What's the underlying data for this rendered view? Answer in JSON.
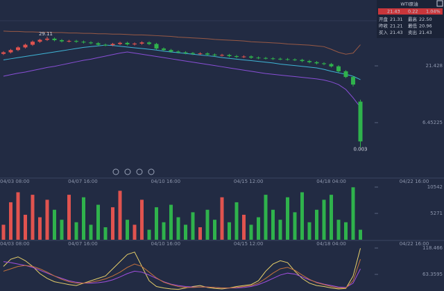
{
  "quote_panel": {
    "title": "WTI原油",
    "price": "21.43",
    "change": "0.22",
    "change_pct": "1.04%",
    "rows": [
      [
        "开盘",
        "21.31",
        "最高",
        "22.50"
      ],
      [
        "昨收",
        "21.21",
        "最低",
        "20.96"
      ],
      [
        "买入",
        "21.43",
        "卖出",
        "21.43"
      ]
    ]
  },
  "chart_data": [
    {
      "type": "candlestick",
      "up_color": "#e0534f",
      "down_color": "#2fb24c",
      "x_labels": [
        "04/03 08:00",
        "04/07 16:00",
        "04/10 16:00",
        "04/15 12:00",
        "04/18 04:00",
        "04/22 16:00"
      ],
      "ylim": [
        -7.8,
        38.8
      ],
      "yticks": [
        21.428,
        6.45225
      ],
      "ohlc": [
        [
          24.6,
          25.3,
          24.3,
          25.0
        ],
        [
          25.0,
          25.9,
          24.7,
          25.6
        ],
        [
          25.6,
          26.6,
          25.3,
          26.3
        ],
        [
          26.3,
          27.3,
          26.0,
          27.0
        ],
        [
          27.0,
          28.1,
          26.7,
          27.8
        ],
        [
          27.8,
          28.6,
          27.5,
          28.3
        ],
        [
          28.3,
          29.11,
          28.0,
          28.6
        ],
        [
          28.6,
          28.9,
          27.9,
          28.2
        ],
        [
          28.2,
          28.5,
          27.6,
          27.9
        ],
        [
          27.9,
          28.3,
          27.6,
          28.0
        ],
        [
          28.0,
          28.3,
          27.5,
          27.8
        ],
        [
          27.8,
          28.1,
          27.3,
          27.6
        ],
        [
          27.6,
          27.9,
          27.1,
          27.4
        ],
        [
          27.4,
          27.7,
          26.7,
          27.0
        ],
        [
          27.0,
          27.3,
          26.6,
          26.9
        ],
        [
          26.9,
          27.5,
          26.6,
          27.2
        ],
        [
          27.2,
          27.8,
          26.9,
          27.5
        ],
        [
          27.5,
          27.8,
          26.8,
          27.1
        ],
        [
          27.1,
          27.6,
          26.8,
          27.3
        ],
        [
          27.3,
          27.9,
          27.0,
          27.6
        ],
        [
          27.6,
          27.9,
          26.9,
          27.2
        ],
        [
          27.2,
          27.5,
          25.7,
          26.0
        ],
        [
          26.0,
          26.3,
          25.3,
          25.6
        ],
        [
          25.6,
          25.9,
          24.9,
          25.2
        ],
        [
          25.2,
          25.5,
          24.7,
          25.0
        ],
        [
          25.0,
          25.3,
          24.5,
          24.8
        ],
        [
          24.8,
          25.1,
          24.3,
          24.6
        ],
        [
          24.6,
          25.0,
          24.3,
          24.7
        ],
        [
          24.7,
          25.0,
          24.1,
          24.4
        ],
        [
          24.4,
          24.7,
          23.9,
          24.2
        ],
        [
          24.2,
          24.6,
          23.9,
          24.3
        ],
        [
          24.3,
          24.6,
          23.7,
          24.0
        ],
        [
          24.0,
          24.3,
          23.5,
          23.8
        ],
        [
          23.8,
          24.2,
          23.5,
          23.9
        ],
        [
          23.9,
          24.2,
          23.3,
          23.6
        ],
        [
          23.6,
          23.9,
          23.2,
          23.5
        ],
        [
          23.5,
          23.8,
          23.1,
          23.4
        ],
        [
          23.4,
          23.7,
          23.0,
          23.3
        ],
        [
          23.3,
          23.6,
          22.9,
          23.2
        ],
        [
          23.2,
          23.5,
          22.8,
          23.1
        ],
        [
          23.1,
          23.4,
          22.7,
          23.0
        ],
        [
          23.0,
          23.3,
          22.4,
          22.7
        ],
        [
          22.7,
          23.0,
          22.1,
          22.4
        ],
        [
          22.4,
          22.7,
          21.8,
          22.1
        ],
        [
          22.1,
          22.4,
          21.6,
          21.9
        ],
        [
          21.9,
          22.2,
          21.0,
          21.3
        ],
        [
          21.3,
          21.6,
          19.7,
          20.0
        ],
        [
          20.0,
          20.3,
          18.2,
          18.5
        ],
        [
          18.5,
          18.8,
          16.0,
          16.5
        ],
        [
          12.0,
          12.5,
          0.003,
          1.5
        ]
      ],
      "series": [
        {
          "color": "#9a5a45",
          "values": [
            30.6,
            30.5,
            30.5,
            30.4,
            30.4,
            30.3,
            30.3,
            30.2,
            30.2,
            30.1,
            30.1,
            30.0,
            30.0,
            29.9,
            29.9,
            29.8,
            29.8,
            29.7,
            29.6,
            29.6,
            29.5,
            29.4,
            29.3,
            29.2,
            29.0,
            28.9,
            28.8,
            28.7,
            28.6,
            28.4,
            28.3,
            28.2,
            28.1,
            28.0,
            27.8,
            27.7,
            27.6,
            27.5,
            27.4,
            27.2,
            27.1,
            27.0,
            26.9,
            26.7,
            26.5,
            25.8,
            25.0,
            24.5,
            24.8,
            27.0
          ]
        },
        {
          "color": "#3fb6d8",
          "values": [
            23.0,
            23.3,
            23.6,
            23.9,
            24.2,
            24.5,
            24.8,
            25.1,
            25.4,
            25.7,
            26.0,
            26.3,
            26.5,
            26.7,
            26.9,
            26.8,
            26.6,
            26.4,
            26.2,
            26.0,
            25.8,
            25.6,
            25.3,
            25.1,
            24.9,
            24.7,
            24.5,
            24.3,
            24.1,
            23.9,
            23.6,
            23.4,
            23.2,
            23.0,
            22.8,
            22.6,
            22.4,
            22.2,
            21.9,
            21.7,
            21.5,
            21.3,
            21.1,
            20.9,
            20.5,
            20.0,
            19.6,
            19.2,
            18.7,
            17.8
          ]
        },
        {
          "color": "#8a4fd8",
          "values": [
            18.7,
            19.1,
            19.5,
            19.8,
            20.2,
            20.6,
            21.0,
            21.3,
            21.7,
            22.1,
            22.5,
            22.9,
            23.2,
            23.6,
            24.0,
            24.4,
            24.8,
            25.1,
            24.8,
            24.5,
            24.2,
            23.9,
            23.6,
            23.3,
            23.0,
            22.7,
            22.4,
            22.1,
            21.8,
            21.5,
            21.2,
            20.9,
            20.6,
            20.3,
            20.0,
            19.7,
            19.4,
            19.2,
            19.0,
            18.8,
            18.6,
            18.4,
            18.2,
            18.0,
            17.7,
            17.2,
            16.5,
            15.2,
            13.0,
            10.5
          ]
        }
      ]
    },
    {
      "type": "bar",
      "ylim": [
        0,
        11235
      ],
      "yticks": [
        10542,
        5271
      ],
      "values": [
        3000,
        7500,
        9500,
        5000,
        9000,
        4500,
        8000,
        6000,
        4000,
        9000,
        3500,
        8500,
        3000,
        7000,
        2500,
        6500,
        9800,
        4000,
        3000,
        8000,
        2000,
        6500,
        3500,
        7000,
        4500,
        3000,
        5500,
        2500,
        6000,
        4000,
        8500,
        3500,
        7500,
        5000,
        3000,
        4500,
        9000,
        6000,
        4000,
        8500,
        5500,
        9500,
        3500,
        6000,
        8000,
        9000,
        4000,
        3500,
        10500,
        2000
      ]
    },
    {
      "type": "line",
      "ylim": [
        28.6,
        122.8
      ],
      "yticks": [
        118.466,
        63.3595
      ],
      "series": [
        {
          "color": "#e8d06a",
          "values": [
            80,
            95,
            100,
            92,
            80,
            65,
            55,
            48,
            45,
            42,
            40,
            45,
            50,
            55,
            60,
            75,
            90,
            105,
            110,
            80,
            50,
            38,
            35,
            33,
            32,
            35,
            38,
            40,
            36,
            34,
            33,
            35,
            38,
            40,
            42,
            50,
            70,
            85,
            92,
            88,
            70,
            55,
            45,
            40,
            38,
            35,
            33,
            34,
            60,
            118
          ]
        },
        {
          "color": "#a34fe0",
          "values": [
            90,
            88,
            85,
            82,
            78,
            72,
            66,
            60,
            55,
            50,
            47,
            45,
            45,
            46,
            48,
            52,
            58,
            65,
            70,
            68,
            62,
            55,
            48,
            43,
            40,
            38,
            37,
            37,
            37,
            36,
            35,
            35,
            35,
            36,
            38,
            42,
            48,
            55,
            62,
            66,
            64,
            58,
            52,
            47,
            43,
            40,
            37,
            36,
            45,
            75
          ]
        },
        {
          "color": "#c8743c",
          "values": [
            70,
            75,
            80,
            82,
            80,
            75,
            68,
            60,
            53,
            48,
            45,
            45,
            47,
            50,
            54,
            60,
            68,
            78,
            85,
            80,
            68,
            56,
            47,
            42,
            38,
            36,
            36,
            37,
            37,
            36,
            35,
            35,
            36,
            38,
            40,
            45,
            55,
            66,
            75,
            78,
            72,
            62,
            53,
            46,
            42,
            38,
            35,
            35,
            50,
            95
          ]
        }
      ]
    }
  ]
}
